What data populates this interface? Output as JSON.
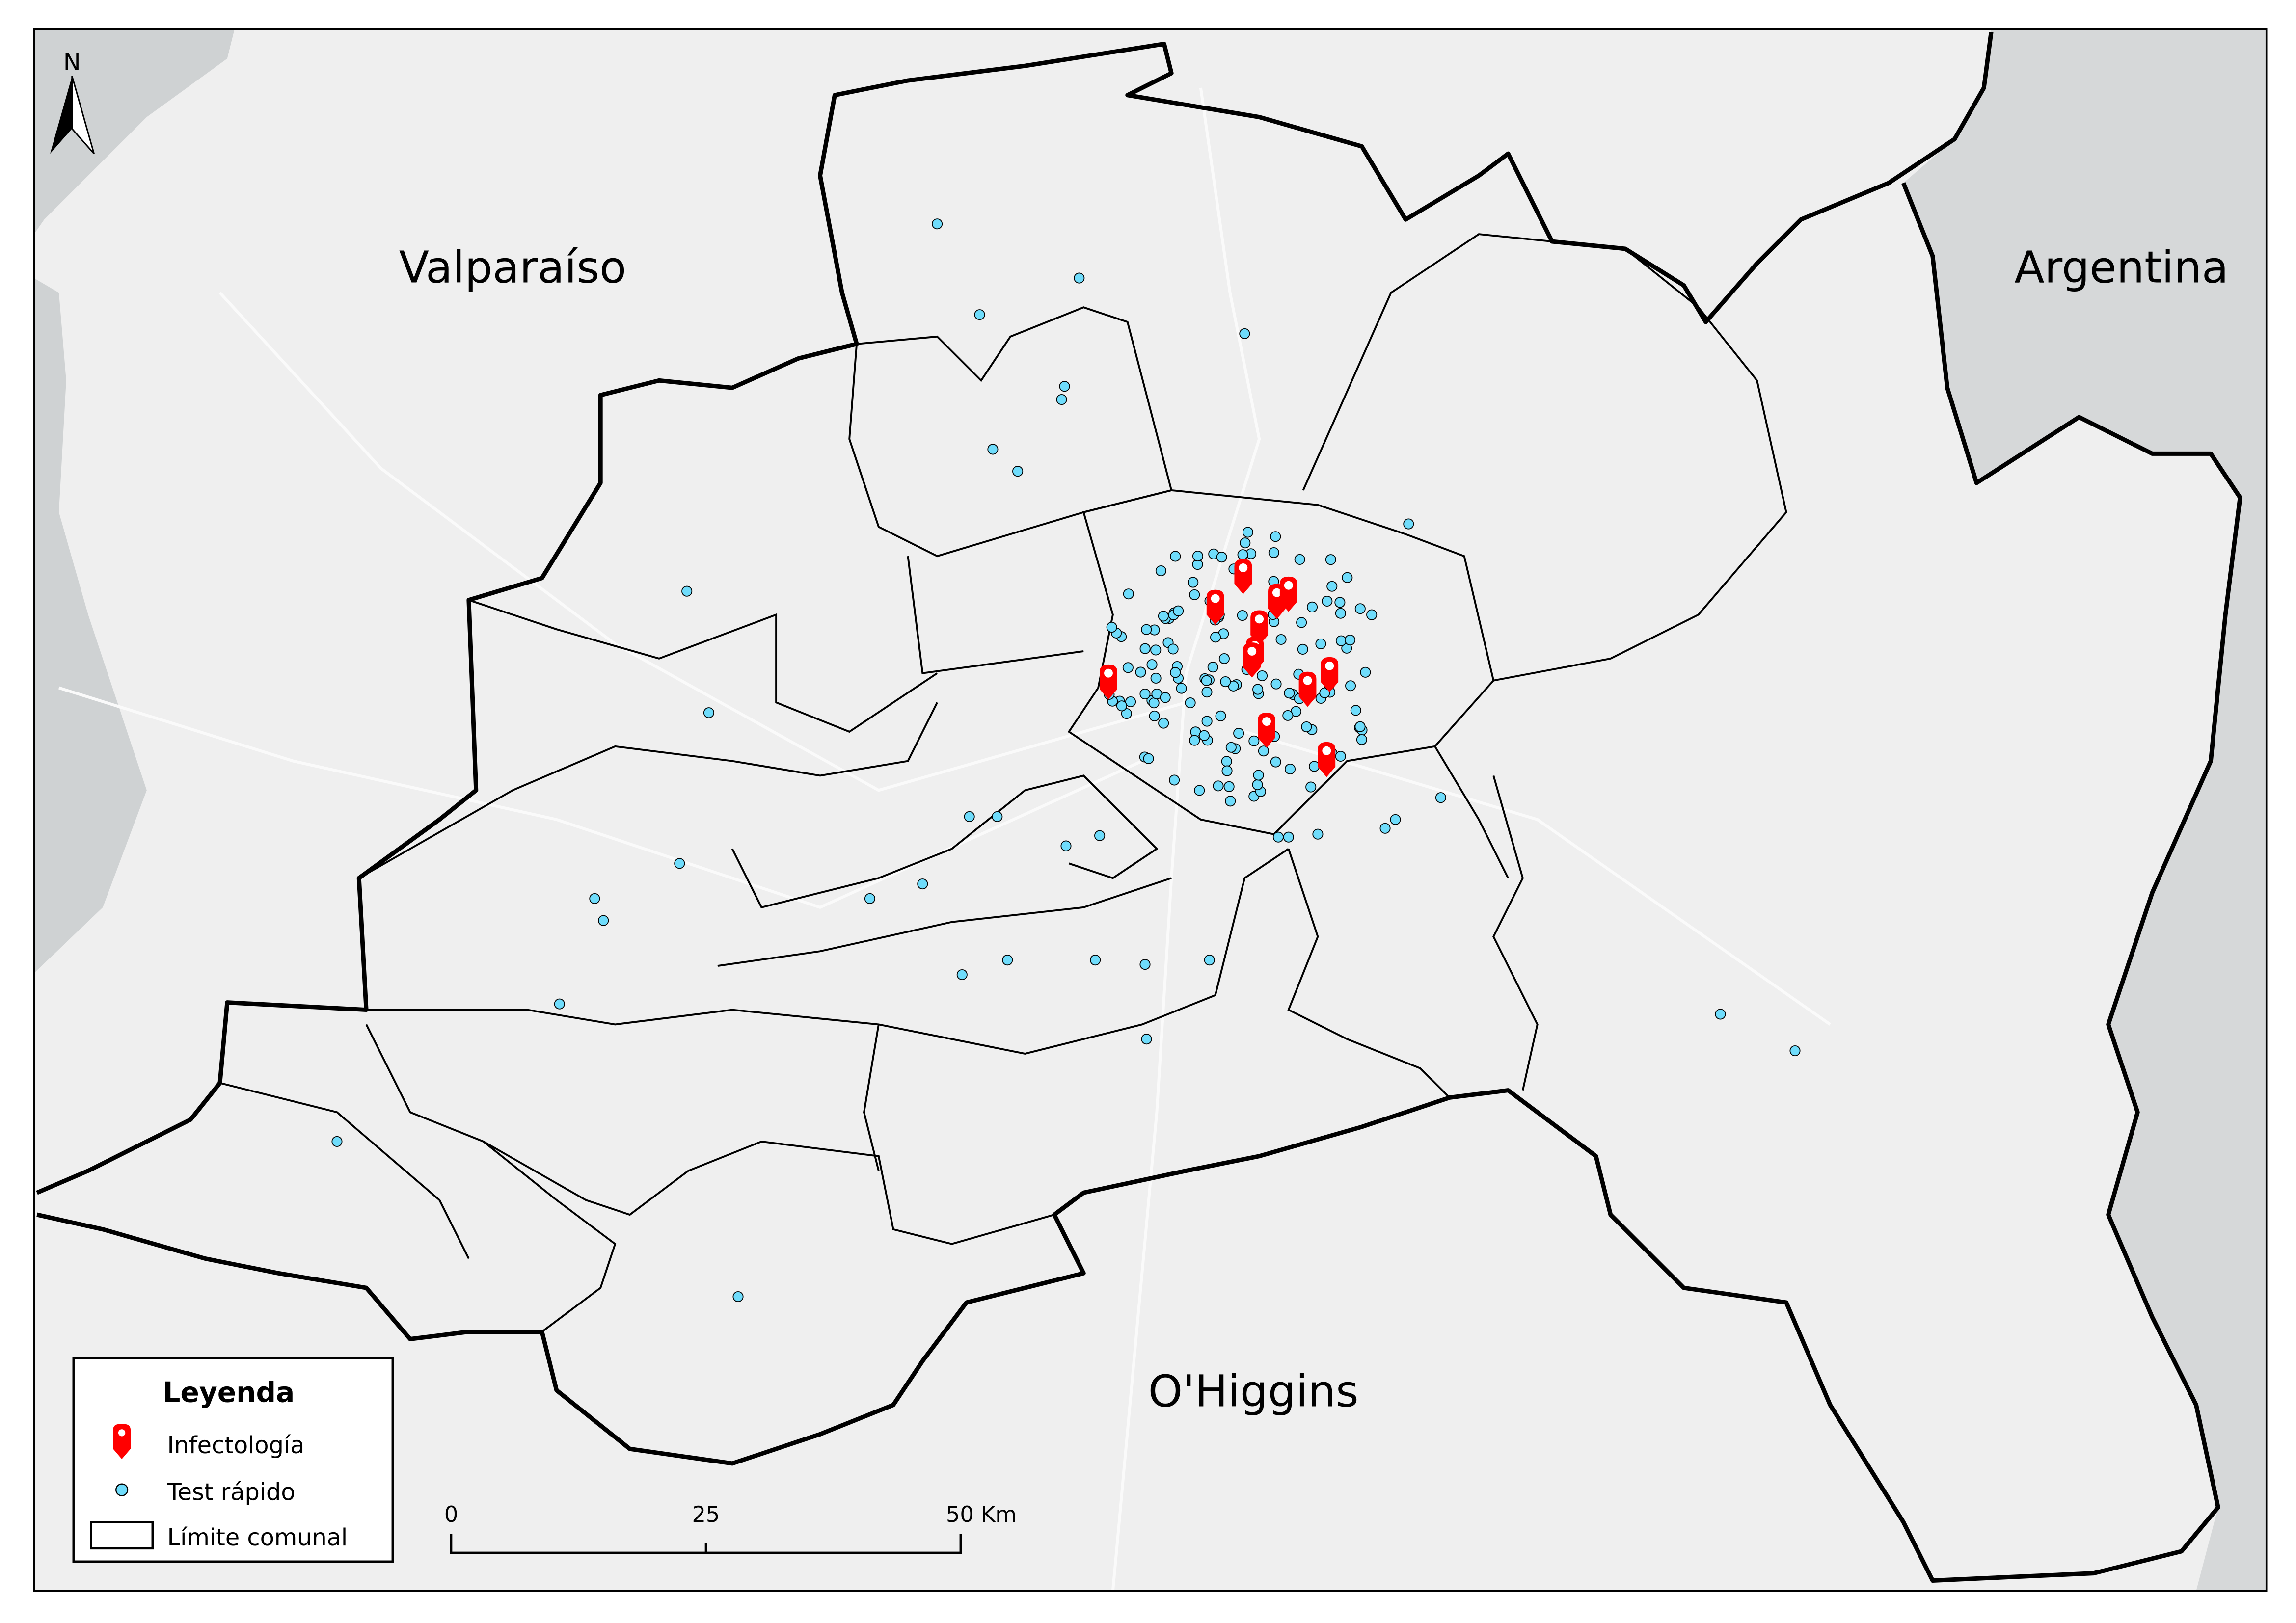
{
  "map": {
    "labels": {
      "valparaiso": "Valparaíso",
      "argentina": "Argentina",
      "ohiggins": "O'Higgins"
    },
    "north_arrow": {
      "letter": "N",
      "icon": "north-arrow-icon"
    },
    "legend": {
      "title": "Leyenda",
      "items": [
        {
          "label": "Infectología",
          "icon": "map-pin-icon",
          "color": "#ff0000"
        },
        {
          "label": "Test rápido",
          "icon": "circle-point-icon",
          "color": "#6fdcfb"
        },
        {
          "label": "Límite comunal",
          "icon": "rectangle-outline-icon",
          "color": "#000000"
        }
      ]
    },
    "scale_bar": {
      "ticks": [
        "0",
        "25",
        "50 Km"
      ]
    },
    "colors": {
      "background": "#efefef",
      "neighbour": "#d6d8d9",
      "ocean": "#cfd2d3",
      "boundary": "#000000",
      "infectologia": "#ff0000",
      "test_rapido": "#6fdcfb"
    }
  }
}
